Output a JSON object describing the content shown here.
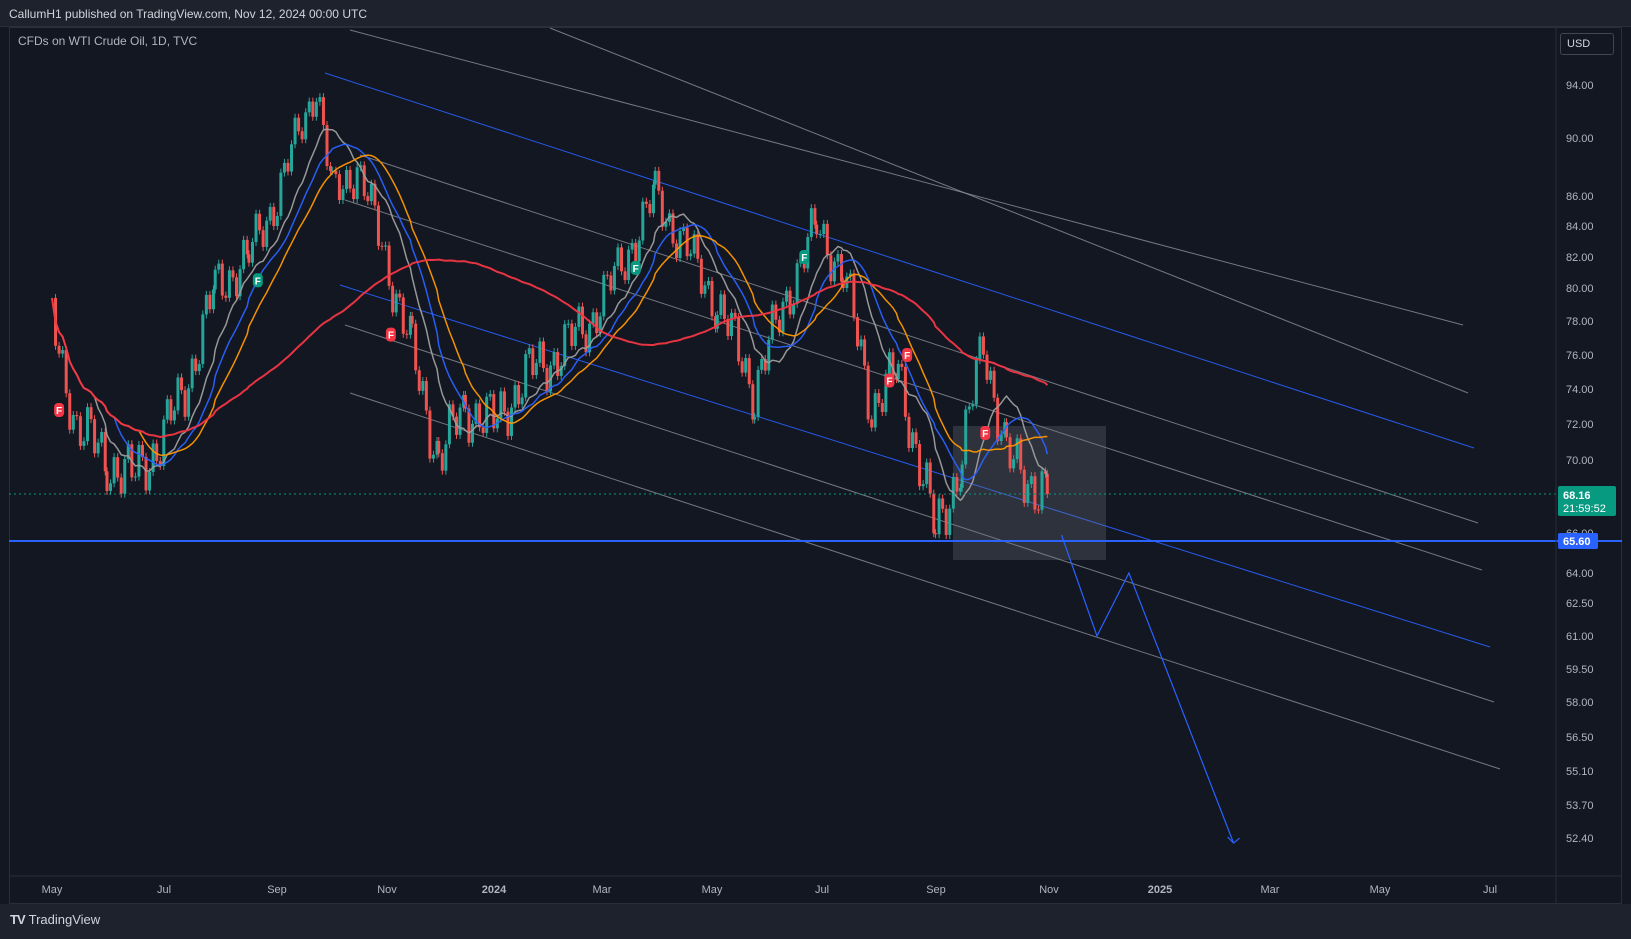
{
  "header": {
    "publisher": "CallumH1 published on TradingView.com, Nov 12, 2024 00:00 UTC"
  },
  "chart": {
    "symbol_label": "CFDs on WTI Crude Oil, 1D, TVC",
    "currency_button": "USD"
  },
  "footer": {
    "brand": "TradingView",
    "brand_logo": "TV"
  },
  "colors": {
    "background": "#131722",
    "grid_text": "#b2b5be",
    "channel_white": "#9598a1",
    "channel_blue": "#2962ff",
    "support_line": "#2962ff",
    "ma_red": "#f23645",
    "ma_orange": "#ff9800",
    "ma_blue": "#2962ff",
    "ma_gray": "#9e9e9e",
    "candle_up": "#26a69a",
    "candle_down": "#ef5350",
    "price_tag": "#089981"
  },
  "chart_data": {
    "type": "line",
    "x_labels": [
      "May",
      "Jul",
      "Sep",
      "Nov",
      "2024",
      "Mar",
      "May",
      "Jul",
      "Sep",
      "Nov",
      "2025",
      "Mar",
      "May",
      "Jul"
    ],
    "y_ticks": [
      "94.00",
      "90.00",
      "86.00",
      "84.00",
      "82.00",
      "80.00",
      "78.00",
      "76.00",
      "74.00",
      "72.00",
      "70.00",
      "66.00",
      "64.00",
      "62.50",
      "61.00",
      "59.50",
      "58.00",
      "56.50",
      "55.10",
      "53.70",
      "52.40"
    ],
    "ylim": [
      51.5,
      97
    ],
    "last_price": {
      "value": 68.16,
      "label": "68.16",
      "countdown": "21:59:52"
    },
    "support_level": {
      "value": 65.6,
      "label": "65.60"
    },
    "series": [
      {
        "points": [
          [
            "2023-05-01",
            78
          ],
          [
            "2023-05-05",
            76
          ],
          [
            "2023-05-15",
            72
          ],
          [
            "2023-06-01",
            70
          ],
          [
            "2023-06-15",
            69
          ],
          [
            "2023-07-01",
            71
          ],
          [
            "2023-07-15",
            74
          ],
          [
            "2023-08-01",
            80
          ],
          [
            "2023-08-20",
            82
          ],
          [
            "2023-09-05",
            86
          ],
          [
            "2023-09-27",
            94
          ],
          [
            "2023-10-06",
            86
          ],
          [
            "2023-10-20",
            88
          ],
          [
            "2023-11-05",
            82
          ],
          [
            "2023-11-20",
            76
          ],
          [
            "2023-12-05",
            70
          ],
          [
            "2023-12-20",
            73
          ],
          [
            "2024-01-05",
            72
          ],
          [
            "2024-01-25",
            75
          ],
          [
            "2024-02-10",
            76
          ],
          [
            "2024-02-28",
            78
          ],
          [
            "2024-03-15",
            81
          ],
          [
            "2024-04-05",
            86
          ],
          [
            "2024-04-25",
            82
          ],
          [
            "2024-05-10",
            79
          ],
          [
            "2024-05-31",
            74
          ],
          [
            "2024-06-20",
            80
          ],
          [
            "2024-07-05",
            84
          ],
          [
            "2024-07-20",
            81
          ],
          [
            "2024-08-05",
            73
          ],
          [
            "2024-08-20",
            75
          ],
          [
            "2024-09-10",
            66
          ],
          [
            "2024-09-25",
            70
          ],
          [
            "2024-10-07",
            77
          ],
          [
            "2024-10-20",
            70
          ],
          [
            "2024-11-01",
            69
          ],
          [
            "2024-11-12",
            68.16
          ]
        ]
      }
    ],
    "projection": [
      [
        "2024-11-20",
        65.9
      ],
      [
        "2024-12-10",
        61.0
      ],
      [
        "2024-12-28",
        64.0
      ],
      [
        "2025-02-25",
        52.2
      ]
    ],
    "annotations": [
      "F"
    ]
  }
}
